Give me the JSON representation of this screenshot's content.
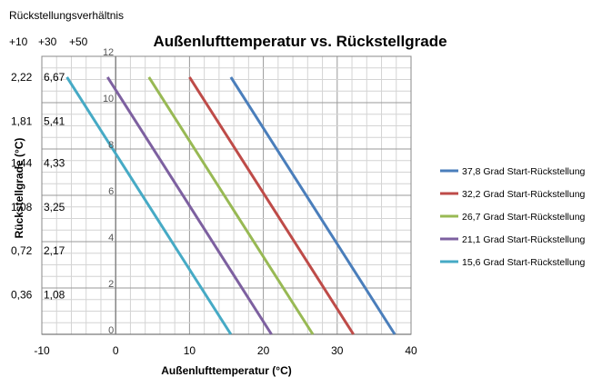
{
  "chart_data": {
    "type": "line",
    "title": "Außenlufttemperatur vs. Rückstellgrade",
    "xlabel": "Außenlufttemperatur (°C)",
    "ylabel": "Rückstellgrade (°C)",
    "xlim": [
      -10,
      40
    ],
    "ylim": [
      0,
      12
    ],
    "x_ticks": [
      "-10",
      "0",
      "10",
      "20",
      "30",
      "40"
    ],
    "y_ticks": [
      "0",
      "2",
      "4",
      "6",
      "8",
      "10",
      "12"
    ],
    "grid": true,
    "legend_position": "right",
    "ratio_header": "Rückstellungsverhältnis",
    "ratio_column_labels": [
      "+10",
      "+30",
      "+50"
    ],
    "ratio_rows": [
      {
        "a": "2,22",
        "b": "6,67",
        "y": 11.1
      },
      {
        "a": "1,81",
        "b": "5,41",
        "y": 9.2
      },
      {
        "a": "1,44",
        "b": "4,33",
        "y": 7.4
      },
      {
        "a": "1,08",
        "b": "3,25",
        "y": 5.5
      },
      {
        "a": "0,72",
        "b": "2,17",
        "y": 3.6
      },
      {
        "a": "0,36",
        "b": "1,08",
        "y": 1.7
      }
    ],
    "series": [
      {
        "name": "37,8 Grad Start-Rückstellung",
        "color": "#4a7ebb",
        "x": [
          15.6,
          37.8
        ],
        "y": [
          11.1,
          0
        ]
      },
      {
        "name": "32,2 Grad Start-Rückstellung",
        "color": "#be4b48",
        "x": [
          10.0,
          32.2
        ],
        "y": [
          11.1,
          0
        ]
      },
      {
        "name": "26,7 Grad Start-Rückstellung",
        "color": "#98b954",
        "x": [
          4.5,
          26.7
        ],
        "y": [
          11.1,
          0
        ]
      },
      {
        "name": "21,1 Grad Start-Rückstellung",
        "color": "#7d60a0",
        "x": [
          -1.1,
          21.1
        ],
        "y": [
          11.1,
          0
        ]
      },
      {
        "name": "15,6 Grad Start-Rückstellung",
        "color": "#46aac5",
        "x": [
          -6.6,
          15.6
        ],
        "y": [
          11.1,
          0
        ]
      }
    ]
  }
}
